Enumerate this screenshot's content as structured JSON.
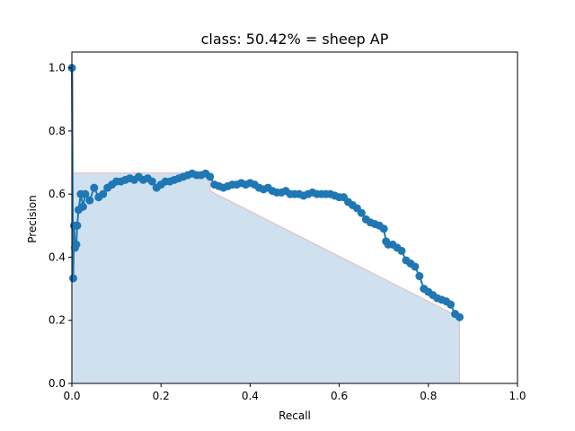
{
  "chart_data": {
    "type": "area",
    "title": "class: 50.42% = sheep AP",
    "xlabel": "Recall",
    "ylabel": "Precision",
    "xlim": [
      0,
      1
    ],
    "ylim": [
      0,
      1.05
    ],
    "x_ticks": [
      "0.0",
      "0.2",
      "0.4",
      "0.6",
      "0.8",
      "1.0"
    ],
    "y_ticks": [
      "0.0",
      "0.2",
      "0.4",
      "0.6",
      "0.8",
      "1.0"
    ],
    "grid": false,
    "legend": "none",
    "ap_value": "50.42%",
    "class_name": "sheep",
    "colors": {
      "points": "#1f77b4",
      "fill": "#cfe0ef",
      "envelope": "#e8b7c4",
      "axes": "#000000"
    },
    "pr_points": {
      "x": [
        0.0,
        0.003,
        0.005,
        0.007,
        0.01,
        0.012,
        0.015,
        0.02,
        0.025,
        0.03,
        0.04,
        0.05,
        0.06,
        0.07,
        0.08,
        0.09,
        0.1,
        0.11,
        0.12,
        0.13,
        0.14,
        0.15,
        0.16,
        0.17,
        0.18,
        0.19,
        0.2,
        0.21,
        0.22,
        0.23,
        0.24,
        0.25,
        0.26,
        0.27,
        0.28,
        0.29,
        0.3,
        0.31,
        0.32,
        0.33,
        0.34,
        0.35,
        0.36,
        0.37,
        0.38,
        0.39,
        0.4,
        0.41,
        0.42,
        0.43,
        0.44,
        0.45,
        0.46,
        0.47,
        0.48,
        0.49,
        0.5,
        0.51,
        0.52,
        0.53,
        0.54,
        0.55,
        0.56,
        0.57,
        0.58,
        0.59,
        0.6,
        0.61,
        0.62,
        0.63,
        0.64,
        0.65,
        0.66,
        0.67,
        0.68,
        0.69,
        0.7,
        0.705,
        0.71,
        0.72,
        0.73,
        0.74,
        0.75,
        0.76,
        0.77,
        0.78,
        0.79,
        0.8,
        0.81,
        0.82,
        0.83,
        0.84,
        0.85,
        0.86,
        0.87
      ],
      "y": [
        1.0,
        0.333,
        0.5,
        0.43,
        0.44,
        0.5,
        0.55,
        0.6,
        0.56,
        0.6,
        0.58,
        0.62,
        0.59,
        0.6,
        0.62,
        0.63,
        0.64,
        0.64,
        0.645,
        0.65,
        0.645,
        0.655,
        0.645,
        0.65,
        0.64,
        0.62,
        0.63,
        0.64,
        0.64,
        0.645,
        0.65,
        0.655,
        0.66,
        0.665,
        0.66,
        0.66,
        0.665,
        0.655,
        0.63,
        0.625,
        0.62,
        0.625,
        0.63,
        0.63,
        0.635,
        0.63,
        0.635,
        0.63,
        0.62,
        0.615,
        0.62,
        0.61,
        0.605,
        0.605,
        0.61,
        0.6,
        0.6,
        0.6,
        0.595,
        0.6,
        0.605,
        0.6,
        0.6,
        0.6,
        0.6,
        0.595,
        0.59,
        0.59,
        0.575,
        0.565,
        0.555,
        0.54,
        0.52,
        0.51,
        0.505,
        0.5,
        0.49,
        0.45,
        0.44,
        0.44,
        0.43,
        0.42,
        0.39,
        0.38,
        0.37,
        0.34,
        0.3,
        0.29,
        0.28,
        0.27,
        0.265,
        0.26,
        0.25,
        0.22,
        0.21
      ]
    },
    "envelope": {
      "x": [
        0.0,
        0.003,
        0.003,
        0.31,
        0.31,
        0.87,
        0.87
      ],
      "y": [
        1.0,
        1.0,
        0.667,
        0.667,
        0.61,
        0.21,
        0.0
      ]
    }
  }
}
